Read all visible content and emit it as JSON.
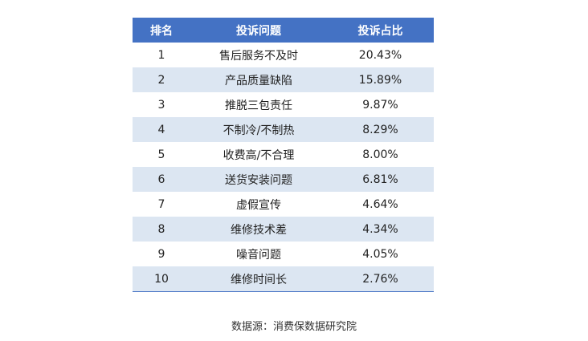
{
  "table": {
    "headers": [
      "排名",
      "投诉问题",
      "投诉占比"
    ],
    "rows": [
      {
        "rank": "1",
        "issue": "售后服务不及时",
        "share": "20.43%"
      },
      {
        "rank": "2",
        "issue": "产品质量缺陷",
        "share": "15.89%"
      },
      {
        "rank": "3",
        "issue": "推脱三包责任",
        "share": "9.87%"
      },
      {
        "rank": "4",
        "issue": "不制冷/不制热",
        "share": "8.29%"
      },
      {
        "rank": "5",
        "issue": "收费高/不合理",
        "share": "8.00%"
      },
      {
        "rank": "6",
        "issue": "送货安装问题",
        "share": "6.81%"
      },
      {
        "rank": "7",
        "issue": "虚假宣传",
        "share": "4.64%"
      },
      {
        "rank": "8",
        "issue": "维修技术差",
        "share": "4.34%"
      },
      {
        "rank": "9",
        "issue": "噪音问题",
        "share": "4.05%"
      },
      {
        "rank": "10",
        "issue": "维修时间长",
        "share": "2.76%"
      }
    ]
  },
  "colors": {
    "header_bg": "#4472c4",
    "stripe_bg": "#dce6f2"
  },
  "source": "数据源：消费保数据研究院"
}
